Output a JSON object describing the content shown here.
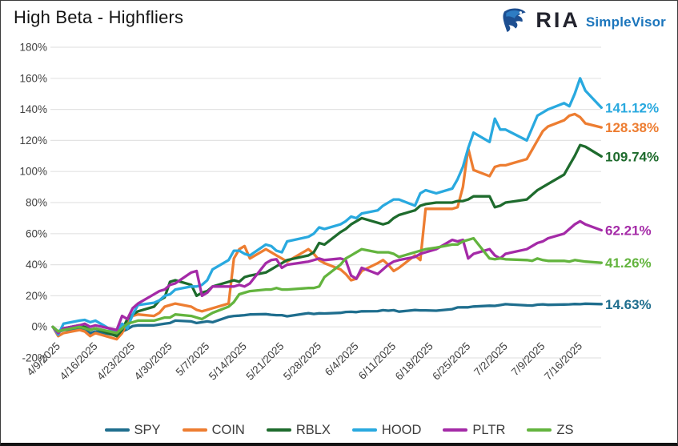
{
  "header": {
    "title": "High Beta - Highfliers",
    "logo": {
      "brand": "RIA",
      "product": "SimpleVisor"
    }
  },
  "chart_data": {
    "type": "line",
    "title": "High Beta - Highfliers",
    "grid": "horizontal",
    "legend_position": "bottom",
    "y_axis": {
      "min": -20,
      "max": 180,
      "step": 20,
      "unit": "%"
    },
    "y_tick_labels": [
      "180%",
      "160%",
      "140%",
      "120%",
      "100%",
      "80%",
      "60%",
      "40%",
      "20%",
      "0%",
      "-20%"
    ],
    "x_tick_labels": [
      "4/9/2025",
      "4/16/2025",
      "4/23/2025",
      "4/30/2025",
      "5/7/2025",
      "5/14/2025",
      "5/21/2025",
      "5/28/2025",
      "6/4/2025",
      "6/11/2025",
      "6/18/2025",
      "6/25/2025",
      "7/2/2025",
      "7/9/2025",
      "7/16/2025"
    ],
    "x": [
      "4/9/2025",
      "4/10/2025",
      "4/11/2025",
      "4/14/2025",
      "4/15/2025",
      "4/16/2025",
      "4/17/2025",
      "4/21/2025",
      "4/22/2025",
      "4/23/2025",
      "4/24/2025",
      "4/25/2025",
      "4/28/2025",
      "4/29/2025",
      "4/30/2025",
      "5/1/2025",
      "5/2/2025",
      "5/5/2025",
      "5/6/2025",
      "5/7/2025",
      "5/8/2025",
      "5/9/2025",
      "5/12/2025",
      "5/13/2025",
      "5/14/2025",
      "5/15/2025",
      "5/16/2025",
      "5/19/2025",
      "5/20/2025",
      "5/21/2025",
      "5/22/2025",
      "5/23/2025",
      "5/27/2025",
      "5/28/2025",
      "5/29/2025",
      "5/30/2025",
      "6/2/2025",
      "6/3/2025",
      "6/4/2025",
      "6/5/2025",
      "6/6/2025",
      "6/9/2025",
      "6/10/2025",
      "6/11/2025",
      "6/12/2025",
      "6/13/2025",
      "6/16/2025",
      "6/17/2025",
      "6/18/2025",
      "6/20/2025",
      "6/23/2025",
      "6/24/2025",
      "6/25/2025",
      "6/26/2025",
      "6/27/2025",
      "6/30/2025",
      "7/1/2025",
      "7/2/2025",
      "7/3/2025",
      "7/7/2025",
      "7/8/2025",
      "7/9/2025",
      "7/10/2025",
      "7/11/2025",
      "7/14/2025",
      "7/15/2025",
      "7/16/2025",
      "7/17/2025",
      "7/18/2025",
      "7/21/2025"
    ],
    "series": [
      {
        "name": "SPY",
        "color": "#1F6E8E",
        "end_label": "14.63%",
        "values": [
          0,
          -3.5,
          -2,
          -1.5,
          -2,
          -4,
          -3,
          -5.5,
          -3,
          -1.5,
          0.5,
          1,
          1,
          1.5,
          2,
          2.5,
          4,
          3.5,
          2.5,
          3,
          3.5,
          3,
          6.5,
          7,
          7.2,
          7.5,
          8,
          8.2,
          7.8,
          7.5,
          7.5,
          6.8,
          8.8,
          8.3,
          8.7,
          8.6,
          9,
          9.6,
          9.7,
          9.5,
          10,
          10.1,
          10.7,
          10.4,
          10.7,
          9.8,
          10.8,
          10.6,
          10.6,
          10.4,
          11.4,
          12.5,
          12.6,
          12.6,
          13.1,
          13.6,
          13.5,
          14,
          14.6,
          13.8,
          13.7,
          14.3,
          14.5,
          14.2,
          14.4,
          14.5,
          14.7,
          14.6,
          14.9,
          14.63
        ]
      },
      {
        "name": "COIN",
        "color": "#ED7D31",
        "end_label": "128.38%",
        "values": [
          0,
          -6,
          -4,
          -2,
          -3,
          -6,
          -4,
          -8,
          -4,
          3,
          7,
          8,
          7,
          9,
          13,
          14,
          15,
          13,
          11,
          10,
          11,
          12,
          15,
          44,
          50,
          52,
          44,
          50,
          48,
          46,
          44,
          42,
          50,
          47,
          43,
          41,
          37,
          34,
          30,
          31,
          36,
          41,
          43,
          40,
          36,
          38,
          46,
          43,
          76,
          76,
          76,
          77,
          90,
          115,
          101,
          97,
          103,
          104,
          104,
          108,
          114,
          120,
          126,
          129,
          133,
          136,
          137,
          135,
          131,
          128.38
        ]
      },
      {
        "name": "RBLX",
        "color": "#1E6B2D",
        "end_label": "109.74%",
        "values": [
          0,
          -3,
          -1,
          1,
          0,
          -2,
          -1,
          -6,
          -2,
          5,
          8,
          10,
          13,
          17,
          19,
          29,
          30,
          27,
          20,
          22,
          23,
          26,
          29,
          30,
          29,
          32,
          33,
          35,
          37,
          39,
          41,
          43,
          46,
          48,
          54,
          53,
          61,
          63,
          66,
          68,
          70,
          67,
          66,
          67,
          70,
          72,
          75,
          78,
          79,
          80,
          80,
          81,
          81,
          82,
          84,
          84,
          77,
          78,
          80,
          82,
          85,
          88,
          90,
          92,
          98,
          104,
          110,
          117,
          116,
          109.74
        ]
      },
      {
        "name": "HOOD",
        "color": "#29A9DF",
        "end_label": "141.12%",
        "values": [
          0,
          -5,
          2,
          4,
          4.5,
          3,
          4,
          -4,
          2,
          -1,
          8,
          14,
          15.5,
          17,
          20,
          21,
          24,
          26,
          26,
          27,
          30,
          37,
          43,
          49,
          49,
          47,
          46,
          53,
          52,
          49,
          48,
          55,
          58,
          60,
          64,
          63,
          66,
          68,
          71,
          70,
          73,
          75,
          78,
          80,
          82,
          82,
          78,
          86,
          88,
          86,
          89,
          95,
          103,
          115,
          125,
          119,
          134,
          127,
          127,
          120,
          128,
          136,
          138,
          140,
          144,
          142,
          150,
          160,
          152,
          141.12
        ]
      },
      {
        "name": "PLTR",
        "color": "#A42AA7",
        "end_label": "62.21%",
        "values": [
          0,
          -4,
          -1,
          1,
          2,
          0,
          1,
          -2,
          7,
          5,
          12,
          15,
          21,
          23,
          24,
          27,
          28,
          35,
          36,
          20,
          22,
          26,
          26,
          26,
          27,
          26,
          28,
          41,
          43,
          43.5,
          38,
          40,
          42,
          43,
          44,
          43,
          44,
          43,
          33,
          31,
          38,
          34,
          37,
          40,
          42,
          43,
          45,
          47,
          48,
          50,
          56,
          55,
          56,
          44,
          47,
          50,
          46,
          44,
          47,
          50,
          52,
          54,
          55,
          57,
          60,
          63,
          66,
          68,
          66,
          62.21
        ]
      },
      {
        "name": "ZS",
        "color": "#63B43E",
        "end_label": "41.26%",
        "values": [
          0,
          -3,
          -2,
          0,
          -1,
          -2,
          -1,
          -4,
          -1,
          2,
          3,
          4,
          4,
          5,
          6,
          6,
          8,
          7,
          6,
          5,
          7,
          9,
          13,
          16,
          21,
          22,
          23,
          24,
          24,
          25,
          24,
          24,
          25,
          25,
          26,
          32,
          40,
          44,
          46,
          48,
          50,
          48,
          48,
          48,
          47,
          45,
          48,
          49,
          50,
          51,
          53,
          53,
          55,
          56,
          57,
          44,
          43.5,
          44,
          43.5,
          43,
          42.5,
          44,
          43,
          42.5,
          42.5,
          42,
          43,
          42.5,
          42,
          41.26
        ]
      }
    ]
  }
}
